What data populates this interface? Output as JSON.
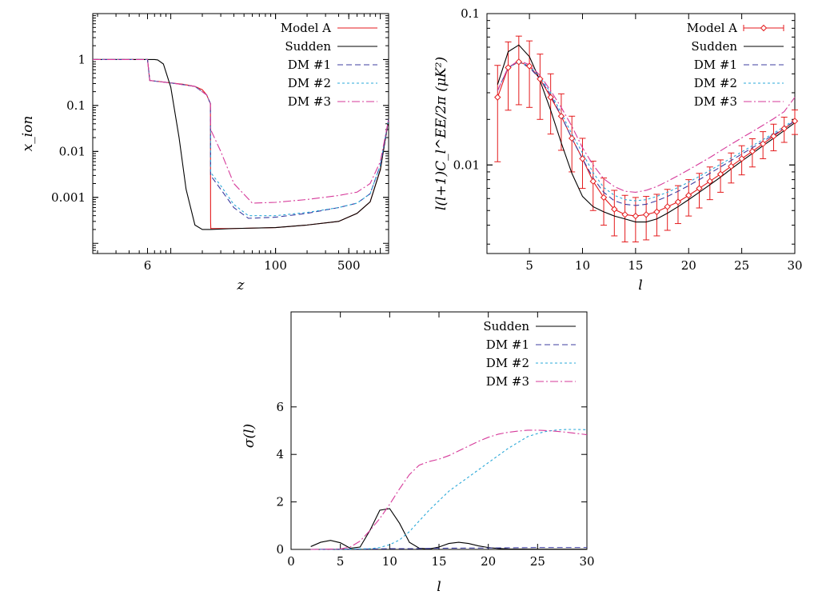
{
  "chart_data": [
    {
      "type": "line",
      "xlabel": "z",
      "ylabel": "x_ion",
      "xscale": "log",
      "yscale": "log",
      "xlim": [
        1.8,
        1200
      ],
      "ylim": [
        6e-05,
        10
      ],
      "x_tick_labels": [
        "6",
        "100",
        "500"
      ],
      "y_tick_labels": [
        "1",
        "0.1",
        "0.01",
        "0.001"
      ],
      "legend_position": "top-right",
      "series": [
        {
          "name": "Model A",
          "color": "#e41a1c",
          "dash": "",
          "x": [
            1.8,
            6,
            6.3,
            8,
            10,
            13,
            17,
            20,
            22,
            23.9,
            24,
            24.1,
            40,
            100,
            200,
            400,
            600,
            800,
            1000,
            1200
          ],
          "y": [
            1,
            1,
            0.35,
            0.33,
            0.31,
            0.29,
            0.26,
            0.22,
            0.17,
            0.11,
            0.0003,
            0.00021,
            0.00021,
            0.00022,
            0.00025,
            0.0003,
            0.00045,
            0.0008,
            0.004,
            0.05
          ]
        },
        {
          "name": "Sudden",
          "color": "#000000",
          "dash": "",
          "x": [
            1.8,
            7,
            7.5,
            8.5,
            10,
            12,
            14,
            17,
            20,
            24,
            40,
            100,
            200,
            400,
            600,
            800,
            1000,
            1200
          ],
          "y": [
            1,
            1,
            0.98,
            0.8,
            0.25,
            0.02,
            0.0015,
            0.00025,
            0.0002,
            0.0002,
            0.00021,
            0.00022,
            0.00025,
            0.0003,
            0.00045,
            0.0008,
            0.004,
            0.05
          ]
        },
        {
          "name": "DM #1",
          "color": "#3c3ca0",
          "dash": "7,4",
          "x": [
            1.8,
            6,
            6.3,
            10,
            17,
            22,
            23.9,
            24,
            30,
            40,
            55,
            100,
            200,
            400,
            600,
            800,
            1000,
            1200
          ],
          "y": [
            1,
            1,
            0.35,
            0.31,
            0.26,
            0.17,
            0.11,
            0.003,
            0.0015,
            0.0006,
            0.00035,
            0.00037,
            0.00045,
            0.0006,
            0.00075,
            0.0012,
            0.005,
            0.05
          ]
        },
        {
          "name": "DM #2",
          "color": "#2aa8d8",
          "dash": "3,3",
          "x": [
            1.8,
            6,
            6.3,
            10,
            17,
            22,
            23.9,
            24,
            30,
            40,
            55,
            100,
            200,
            400,
            600,
            800,
            1000,
            1200
          ],
          "y": [
            1,
            1,
            0.35,
            0.31,
            0.26,
            0.17,
            0.11,
            0.0035,
            0.0018,
            0.0007,
            0.0004,
            0.0004,
            0.00047,
            0.0006,
            0.00075,
            0.0012,
            0.005,
            0.05
          ]
        },
        {
          "name": "DM #3",
          "color": "#d63a9a",
          "dash": "10,3,2,3",
          "x": [
            1.8,
            6,
            6.3,
            10,
            17,
            22,
            23.9,
            24,
            30,
            40,
            60,
            100,
            200,
            400,
            600,
            800,
            1000,
            1200
          ],
          "y": [
            1,
            1,
            0.35,
            0.31,
            0.26,
            0.17,
            0.11,
            0.03,
            0.01,
            0.002,
            0.00075,
            0.00078,
            0.0009,
            0.0011,
            0.0013,
            0.002,
            0.006,
            0.05
          ]
        }
      ]
    },
    {
      "type": "line",
      "xlabel": "l",
      "ylabel": "l(l+1)C_l^EE/2π (μK²)",
      "yscale": "log",
      "xlim": [
        1,
        30
      ],
      "ylim": [
        0.0026,
        0.1
      ],
      "x_ticks": [
        5,
        10,
        15,
        20,
        25,
        30
      ],
      "y_tick_labels": [
        "0.1",
        "0.01"
      ],
      "legend_position": "top-right",
      "errorbars": {
        "name": "Model A",
        "color": "#e41a1c",
        "x": [
          2,
          3,
          4,
          5,
          6,
          7,
          8,
          9,
          10,
          11,
          12,
          13,
          14,
          15,
          16,
          17,
          18,
          19,
          20,
          21,
          22,
          23,
          24,
          25,
          26,
          27,
          28,
          29,
          30
        ],
        "y": [
          0.028,
          0.044,
          0.048,
          0.045,
          0.037,
          0.028,
          0.021,
          0.015,
          0.011,
          0.0078,
          0.0061,
          0.0051,
          0.0047,
          0.0046,
          0.0047,
          0.0049,
          0.0053,
          0.0057,
          0.0063,
          0.007,
          0.0078,
          0.0087,
          0.0098,
          0.011,
          0.0123,
          0.0138,
          0.0155,
          0.0174,
          0.0195
        ],
        "yerr_low": [
          0.0175,
          0.021,
          0.023,
          0.021,
          0.017,
          0.012,
          0.0085,
          0.006,
          0.004,
          0.0028,
          0.0021,
          0.0017,
          0.0016,
          0.0015,
          0.0015,
          0.0015,
          0.0016,
          0.0016,
          0.0017,
          0.0018,
          0.0019,
          0.0021,
          0.0022,
          0.0024,
          0.0026,
          0.0028,
          0.0031,
          0.0033,
          0.0036
        ],
        "yerr_high": [
          0.0175,
          0.021,
          0.023,
          0.021,
          0.017,
          0.012,
          0.0085,
          0.006,
          0.004,
          0.0028,
          0.0021,
          0.0017,
          0.0016,
          0.0015,
          0.0015,
          0.0015,
          0.0016,
          0.0016,
          0.0017,
          0.0018,
          0.0019,
          0.0021,
          0.0022,
          0.0024,
          0.0026,
          0.0028,
          0.0031,
          0.0033,
          0.0036
        ]
      },
      "series": [
        {
          "name": "Model A",
          "color": "#e41a1c",
          "dash": "",
          "x": [
            2,
            3,
            4,
            5,
            6,
            7,
            8,
            9,
            10,
            11,
            12,
            13,
            14,
            15,
            16,
            17,
            18,
            19,
            20,
            21,
            22,
            23,
            24,
            25,
            26,
            27,
            28,
            29,
            30
          ],
          "y": [
            0.028,
            0.044,
            0.048,
            0.045,
            0.037,
            0.028,
            0.021,
            0.015,
            0.011,
            0.0078,
            0.0061,
            0.0051,
            0.0047,
            0.0046,
            0.0047,
            0.0049,
            0.0053,
            0.0057,
            0.0063,
            0.007,
            0.0078,
            0.0087,
            0.0098,
            0.011,
            0.0123,
            0.0138,
            0.0155,
            0.0174,
            0.0195
          ]
        },
        {
          "name": "Sudden",
          "color": "#000000",
          "dash": "",
          "x": [
            2,
            3,
            4,
            5,
            6,
            7,
            8,
            9,
            10,
            11,
            12,
            13,
            14,
            15,
            16,
            17,
            18,
            19,
            20,
            21,
            22,
            23,
            24,
            25,
            26,
            27,
            28,
            29,
            30
          ],
          "y": [
            0.034,
            0.056,
            0.062,
            0.052,
            0.036,
            0.023,
            0.014,
            0.0088,
            0.0062,
            0.0053,
            0.0049,
            0.0046,
            0.0044,
            0.0042,
            0.0042,
            0.0044,
            0.0048,
            0.0053,
            0.0059,
            0.0066,
            0.0074,
            0.0083,
            0.0094,
            0.0106,
            0.0119,
            0.0134,
            0.015,
            0.0169,
            0.019
          ]
        },
        {
          "name": "DM #1",
          "color": "#3c3ca0",
          "dash": "7,4",
          "x": [
            2,
            3,
            4,
            5,
            6,
            7,
            8,
            9,
            10,
            11,
            12,
            13,
            14,
            15,
            16,
            17,
            18,
            19,
            20,
            21,
            22,
            23,
            24,
            25,
            26,
            27,
            28,
            29,
            30
          ],
          "y": [
            0.031,
            0.044,
            0.048,
            0.044,
            0.037,
            0.029,
            0.021,
            0.015,
            0.011,
            0.0082,
            0.0066,
            0.0058,
            0.0055,
            0.0054,
            0.0055,
            0.0058,
            0.0062,
            0.0067,
            0.0073,
            0.008,
            0.0088,
            0.0097,
            0.0107,
            0.0118,
            0.013,
            0.0143,
            0.0158,
            0.0175,
            0.0196
          ]
        },
        {
          "name": "DM #2",
          "color": "#2aa8d8",
          "dash": "3,3",
          "x": [
            2,
            3,
            4,
            5,
            6,
            7,
            8,
            9,
            10,
            11,
            12,
            13,
            14,
            15,
            16,
            17,
            18,
            19,
            20,
            21,
            22,
            23,
            24,
            25,
            26,
            27,
            28,
            29,
            30
          ],
          "y": [
            0.031,
            0.044,
            0.048,
            0.045,
            0.038,
            0.03,
            0.022,
            0.016,
            0.012,
            0.0089,
            0.0071,
            0.0063,
            0.0059,
            0.0058,
            0.0059,
            0.0062,
            0.0066,
            0.0071,
            0.0077,
            0.0084,
            0.0092,
            0.0101,
            0.0111,
            0.0122,
            0.0134,
            0.0147,
            0.0162,
            0.0179,
            0.02
          ]
        },
        {
          "name": "DM #3",
          "color": "#d63a9a",
          "dash": "10,3,2,3",
          "x": [
            2,
            3,
            4,
            5,
            6,
            7,
            8,
            9,
            10,
            11,
            12,
            13,
            14,
            15,
            16,
            17,
            18,
            19,
            20,
            21,
            22,
            23,
            24,
            25,
            26,
            27,
            28,
            29,
            30
          ],
          "y": [
            0.031,
            0.044,
            0.049,
            0.046,
            0.039,
            0.031,
            0.024,
            0.018,
            0.013,
            0.01,
            0.0081,
            0.0072,
            0.0067,
            0.0066,
            0.0068,
            0.0072,
            0.0078,
            0.0085,
            0.0093,
            0.0102,
            0.0112,
            0.0124,
            0.0137,
            0.0151,
            0.0166,
            0.0183,
            0.0202,
            0.0225,
            0.028
          ]
        }
      ]
    },
    {
      "type": "line",
      "xlabel": "l",
      "ylabel": "σ(l)",
      "xlim": [
        0,
        30
      ],
      "ylim": [
        0,
        10
      ],
      "x_ticks": [
        0,
        5,
        10,
        15,
        20,
        25,
        30
      ],
      "y_ticks": [
        0,
        2,
        4,
        6
      ],
      "legend_position": "top-right",
      "series": [
        {
          "name": "Sudden",
          "color": "#000000",
          "dash": "",
          "x": [
            2,
            3,
            4,
            5,
            6,
            7,
            8,
            9,
            10,
            11,
            12,
            13,
            14,
            15,
            16,
            17,
            18,
            19,
            20,
            21,
            22,
            25,
            30
          ],
          "y": [
            0.12,
            0.3,
            0.38,
            0.28,
            0.05,
            0.1,
            0.8,
            1.65,
            1.72,
            1.1,
            0.3,
            0.05,
            0.02,
            0.1,
            0.25,
            0.3,
            0.25,
            0.15,
            0.08,
            0.04,
            0.02,
            0.01,
            0.01
          ]
        },
        {
          "name": "DM #1",
          "color": "#3c3ca0",
          "dash": "7,4",
          "x": [
            2,
            5,
            8,
            10,
            12,
            15,
            20,
            25,
            30
          ],
          "y": [
            0.0,
            0.01,
            0.02,
            0.03,
            0.03,
            0.05,
            0.06,
            0.08,
            0.08
          ]
        },
        {
          "name": "DM #2",
          "color": "#2aa8d8",
          "dash": "3,3",
          "x": [
            2,
            5,
            8,
            9,
            10,
            11,
            12,
            13,
            14,
            15,
            16,
            17,
            18,
            19,
            20,
            21,
            22,
            23,
            24,
            25,
            26,
            27,
            28,
            29,
            30
          ],
          "y": [
            0.0,
            0.01,
            0.03,
            0.08,
            0.2,
            0.4,
            0.75,
            1.2,
            1.65,
            2.05,
            2.45,
            2.75,
            3.05,
            3.35,
            3.65,
            3.95,
            4.25,
            4.5,
            4.75,
            4.88,
            4.98,
            5.03,
            5.05,
            5.05,
            5.04
          ]
        },
        {
          "name": "DM #3",
          "color": "#d63a9a",
          "dash": "10,3,2,3",
          "x": [
            2,
            5,
            6,
            7,
            8,
            9,
            10,
            11,
            12,
            13,
            14,
            15,
            16,
            17,
            18,
            19,
            20,
            21,
            22,
            23,
            24,
            25,
            26,
            27,
            28,
            29,
            30
          ],
          "y": [
            0.0,
            0.02,
            0.1,
            0.35,
            0.8,
            1.3,
            1.9,
            2.55,
            3.15,
            3.55,
            3.7,
            3.8,
            3.95,
            4.15,
            4.35,
            4.55,
            4.72,
            4.85,
            4.93,
            4.98,
            5.02,
            5.02,
            5.0,
            4.97,
            4.93,
            4.88,
            4.83
          ]
        }
      ]
    }
  ]
}
